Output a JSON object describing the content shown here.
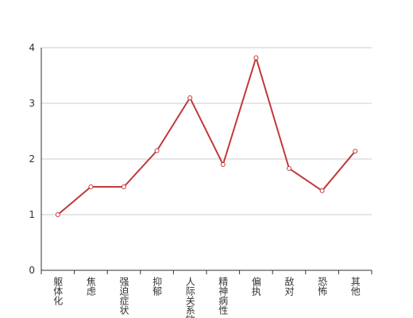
{
  "chart_data": {
    "type": "line",
    "categories": [
      "躯体化",
      "焦虑",
      "强迫症状",
      "抑郁",
      "人际关系敏感",
      "精神病性",
      "偏执",
      "敌对",
      "恐怖",
      "其他"
    ],
    "values": [
      1.0,
      1.5,
      1.5,
      2.15,
      3.1,
      1.9,
      3.82,
      1.83,
      1.43,
      2.14
    ],
    "color": "#c0393b",
    "ylim": [
      0,
      4
    ],
    "yticks": [
      0,
      1,
      2,
      3,
      4
    ],
    "grid": true
  }
}
